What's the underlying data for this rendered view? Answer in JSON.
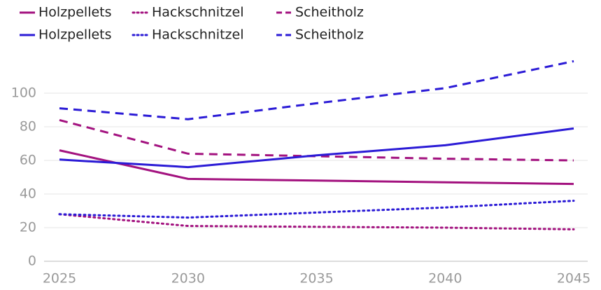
{
  "chart_data": {
    "type": "line",
    "x": [
      2025,
      2030,
      2035,
      2040,
      2045
    ],
    "series": [
      {
        "name": "Holzpellets",
        "color": "#a3127f",
        "dash": "solid",
        "values": [
          66,
          49,
          48,
          47,
          46
        ]
      },
      {
        "name": "Hackschnitzel",
        "color": "#a3127f",
        "dash": "dotted",
        "values": [
          28,
          21,
          20.5,
          20,
          19
        ]
      },
      {
        "name": "Scheitholz",
        "color": "#a3127f",
        "dash": "dashed",
        "values": [
          84,
          64,
          62.5,
          61,
          60
        ]
      },
      {
        "name": "Holzpellets",
        "color": "#2b1bd6",
        "dash": "solid",
        "values": [
          60.5,
          56,
          63,
          69,
          79
        ]
      },
      {
        "name": "Hackschnitzel",
        "color": "#2b1bd6",
        "dash": "dotted",
        "values": [
          28,
          26,
          29,
          32,
          36
        ]
      },
      {
        "name": "Scheitholz",
        "color": "#2b1bd6",
        "dash": "dashed",
        "values": [
          91,
          84.5,
          94,
          103,
          119
        ]
      }
    ],
    "xlim": [
      2025,
      2045
    ],
    "xticks": [
      2025,
      2030,
      2035,
      2040,
      2045
    ],
    "ylim": [
      0,
      120
    ],
    "yticks": [
      0,
      20,
      40,
      60,
      80,
      100
    ],
    "grid": true
  }
}
